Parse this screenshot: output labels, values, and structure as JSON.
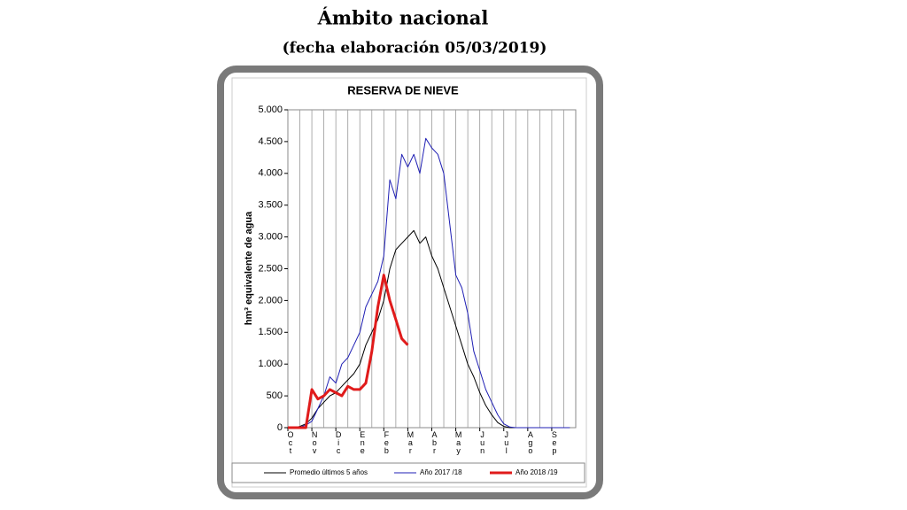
{
  "header": {
    "title": "Ámbito nacional",
    "subtitle": "(fecha elaboración 05/03/2019)"
  },
  "chart_data": {
    "type": "line",
    "title": "RESERVA DE NIEVE",
    "y_label": "hm³ equivalente de agua",
    "categories": [
      "Oct",
      null,
      null,
      null,
      "Nov",
      null,
      null,
      null,
      "Dic",
      null,
      null,
      null,
      "Ene",
      null,
      null,
      null,
      "Feb",
      null,
      null,
      null,
      "Mar",
      null,
      null,
      null,
      "Abr",
      null,
      null,
      null,
      "May",
      null,
      null,
      null,
      "Jun",
      null,
      null,
      null,
      "Jul",
      null,
      null,
      null,
      "Ago",
      null,
      null,
      null,
      "Sep",
      null,
      null,
      null
    ],
    "series": [
      {
        "name": "Promedio últimos 5 años",
        "color": "#000000",
        "width": 1,
        "values": [
          0,
          0,
          20,
          60,
          150,
          300,
          400,
          500,
          550,
          650,
          750,
          850,
          1000,
          1300,
          1500,
          1700,
          2000,
          2500,
          2800,
          2900,
          3000,
          3100,
          2900,
          3000,
          2700,
          2500,
          2200,
          1900,
          1600,
          1300,
          1000,
          800,
          550,
          350,
          200,
          80,
          20,
          0,
          0,
          0,
          0,
          0,
          0,
          0,
          0,
          0,
          0,
          0
        ]
      },
      {
        "name": "Año 2017 /18",
        "color": "#1f1fb4",
        "width": 1,
        "values": [
          0,
          0,
          10,
          40,
          100,
          300,
          500,
          800,
          700,
          1000,
          1100,
          1300,
          1500,
          1900,
          2100,
          2300,
          2700,
          3900,
          3600,
          4300,
          4100,
          4300,
          4000,
          4550,
          4400,
          4300,
          4000,
          3200,
          2400,
          2200,
          1800,
          1200,
          900,
          600,
          400,
          200,
          60,
          10,
          0,
          0,
          0,
          0,
          0,
          0,
          0,
          0,
          0,
          0
        ]
      },
      {
        "name": "Año 2018 /19",
        "color": "#e01b1b",
        "width": 3,
        "values": [
          0,
          0,
          0,
          0,
          600,
          450,
          500,
          600,
          550,
          500,
          650,
          600,
          600,
          700,
          1200,
          1900,
          2400,
          2000,
          1700,
          1400,
          1300,
          null,
          null,
          null,
          null,
          null,
          null,
          null,
          null,
          null,
          null,
          null,
          null,
          null,
          null,
          null,
          null,
          null,
          null,
          null,
          null,
          null,
          null,
          null,
          null,
          null,
          null,
          null
        ]
      }
    ],
    "ylim": [
      0,
      5000
    ],
    "yticks": [
      {
        "value": 0,
        "label": "0"
      },
      {
        "value": 500,
        "label": "500"
      },
      {
        "value": 1000,
        "label": "1.000"
      },
      {
        "value": 1500,
        "label": "1.500"
      },
      {
        "value": 2000,
        "label": "2.000"
      },
      {
        "value": 2500,
        "label": "2.500"
      },
      {
        "value": 3000,
        "label": "3.000"
      },
      {
        "value": 3500,
        "label": "3.500"
      },
      {
        "value": 4000,
        "label": "4.000"
      },
      {
        "value": 4500,
        "label": "4.500"
      },
      {
        "value": 5000,
        "label": "5.000"
      }
    ],
    "grid": "x"
  }
}
